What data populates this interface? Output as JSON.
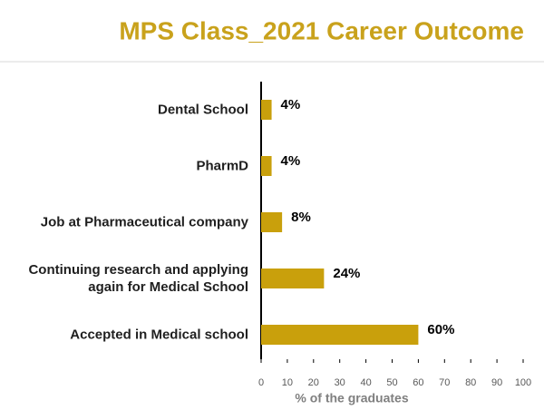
{
  "chart_data": {
    "type": "bar",
    "orientation": "horizontal",
    "title": "MPS Class_2021 Career Outcome",
    "xlabel": "% of the graduates",
    "categories": [
      "Dental School",
      "PharmD",
      "Job at Pharmaceutical company",
      "Continuing research and applying again for Medical School",
      "Accepted in Medical school"
    ],
    "values": [
      4,
      4,
      8,
      24,
      60
    ],
    "value_labels": [
      "4%",
      "4%",
      "8%",
      "24%",
      "60%"
    ],
    "color": "#c9a00c",
    "xlim": [
      0,
      100
    ],
    "xticks": [
      0,
      10,
      20,
      30,
      40,
      50,
      60,
      70,
      80,
      90,
      100
    ],
    "grid": false
  }
}
